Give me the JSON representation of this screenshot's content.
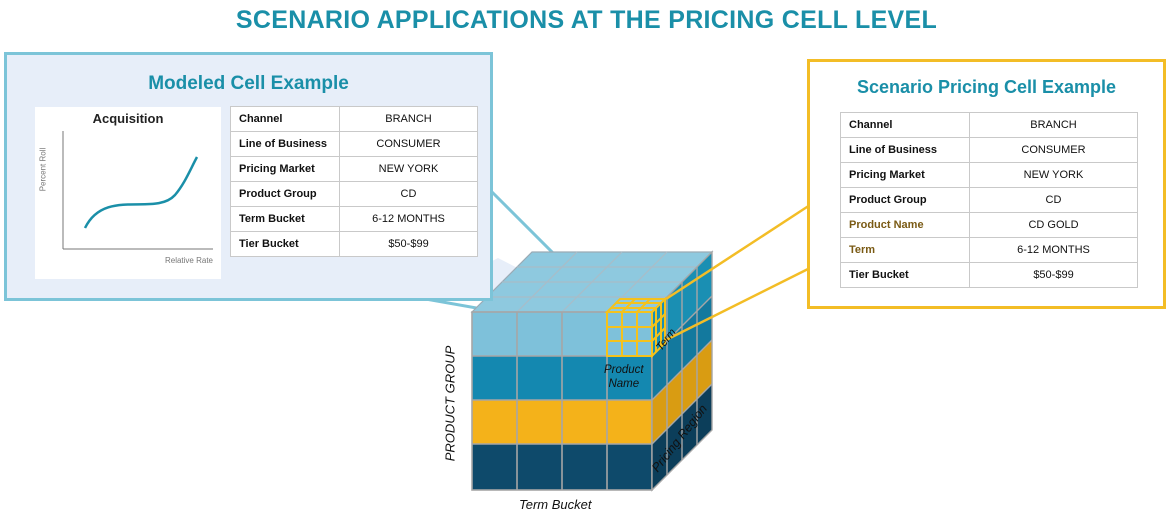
{
  "title": "SCENARIO APPLICATIONS AT THE PRICING CELL LEVEL",
  "modeled": {
    "title": "Modeled Cell Example",
    "chart": {
      "title": "Acquisition",
      "ylabel": "Percent Roll",
      "xlabel": "Relative Rate"
    },
    "rows": [
      {
        "key": "Channel",
        "value": "BRANCH"
      },
      {
        "key": "Line of Business",
        "value": "CONSUMER"
      },
      {
        "key": "Pricing Market",
        "value": "NEW YORK"
      },
      {
        "key": "Product Group",
        "value": "CD"
      },
      {
        "key": "Term Bucket",
        "value": "6-12 MONTHS"
      },
      {
        "key": "Tier Bucket",
        "value": "$50-$99"
      }
    ]
  },
  "scenario": {
    "title": "Scenario Pricing Cell Example",
    "rows": [
      {
        "key": "Channel",
        "value": "BRANCH"
      },
      {
        "key": "Line of Business",
        "value": "CONSUMER"
      },
      {
        "key": "Pricing Market",
        "value": "NEW YORK"
      },
      {
        "key": "Product Group",
        "value": "CD"
      },
      {
        "key": "Product Name",
        "value": "CD GOLD"
      },
      {
        "key": "Term",
        "value": "6-12 MONTHS"
      },
      {
        "key": "Tier Bucket",
        "value": "$50-$99"
      }
    ]
  },
  "cube": {
    "label_product_group": "PRODUCT GROUP",
    "label_term_bucket": "Term Bucket",
    "label_pricing_region": "Pricing Region",
    "label_product_name_1": "Product",
    "label_product_name_2": "Name",
    "label_term": "Term"
  },
  "colors": {
    "teal_title": "#1a8fa8",
    "light_blue": "#7cc4d8",
    "mid_blue": "#1a8fb3",
    "gold": "#f3b21c",
    "dark_navy": "#0f4a6b",
    "top_face": "#8ec9df"
  }
}
